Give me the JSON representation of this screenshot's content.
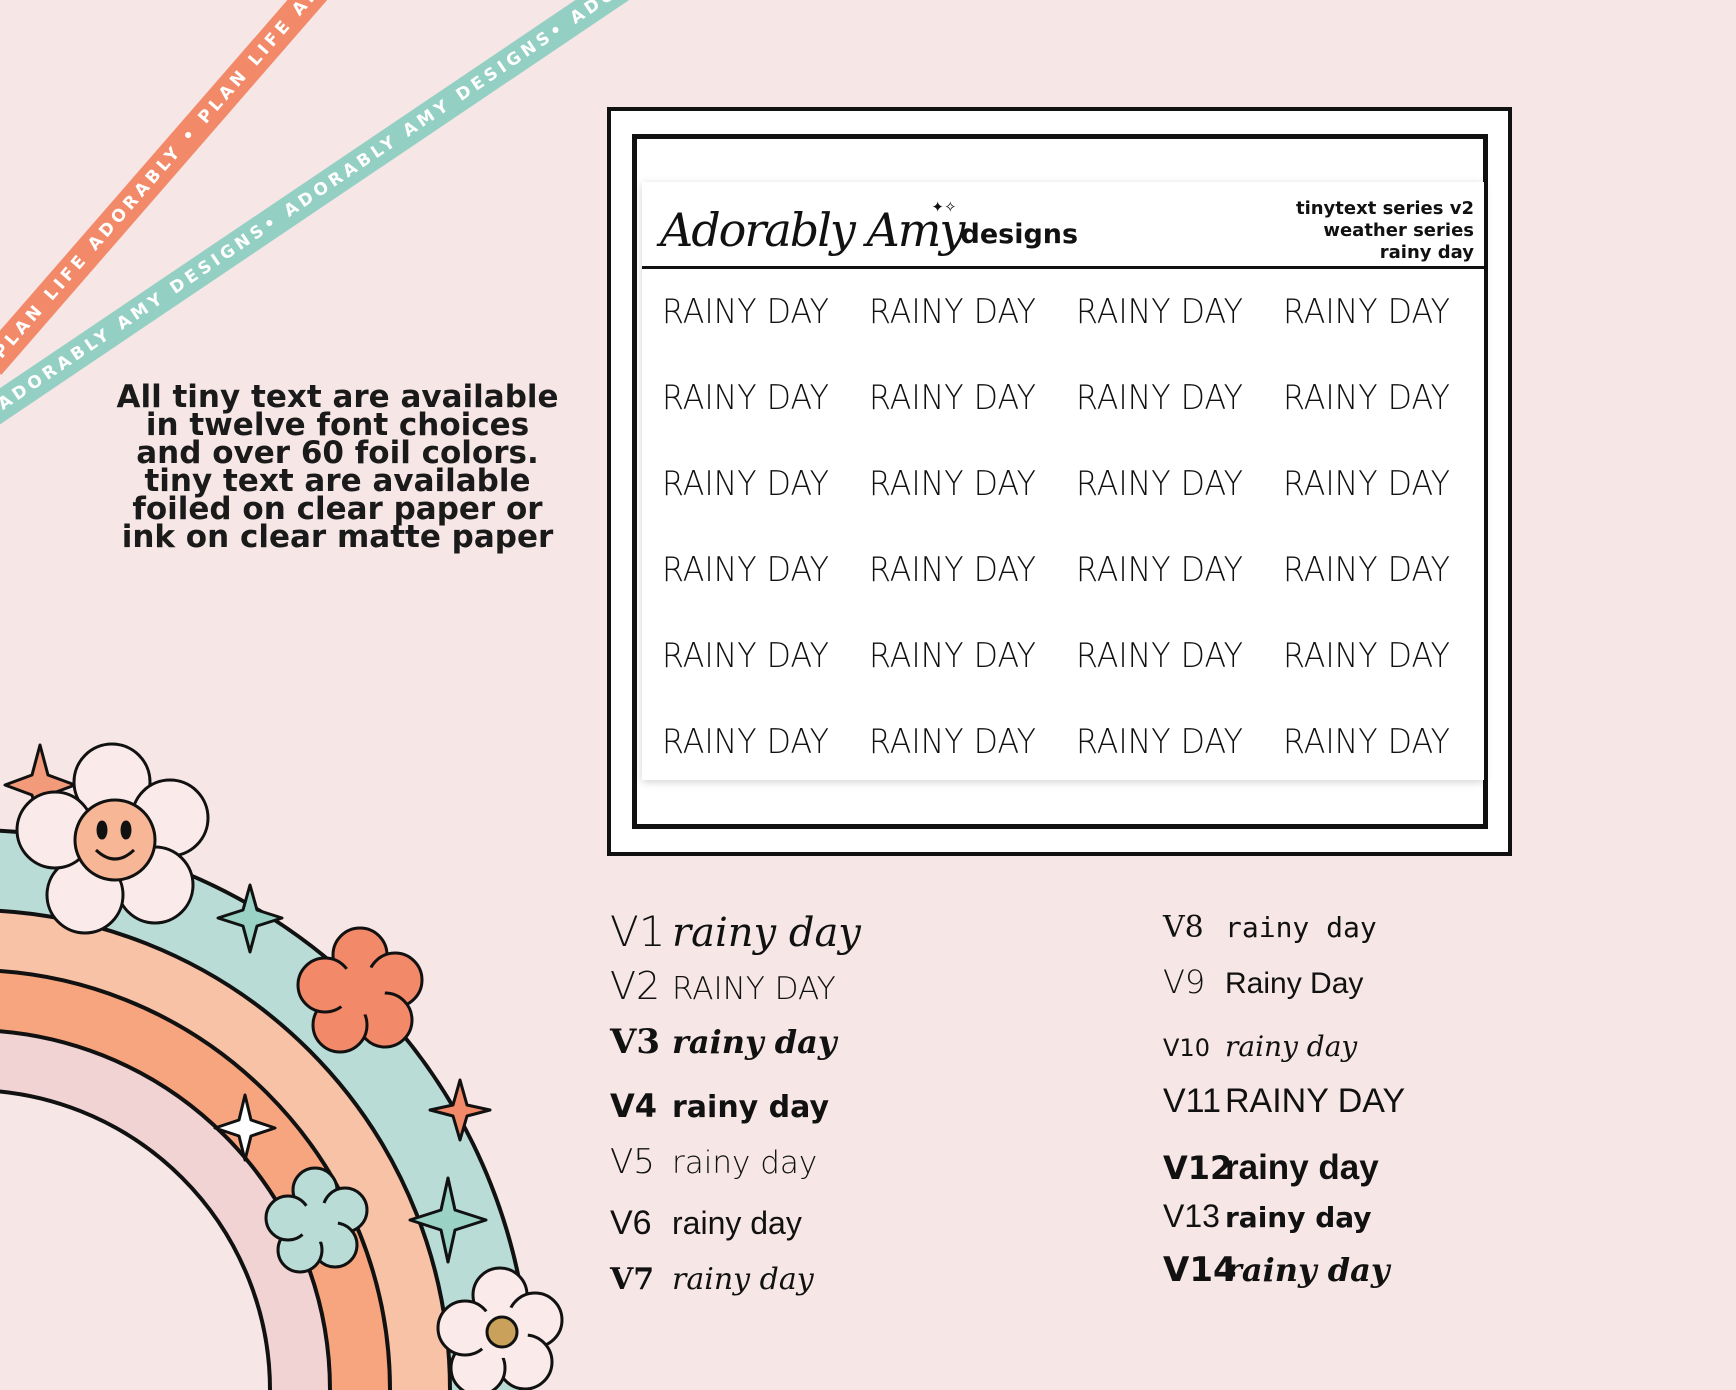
{
  "ribbons": {
    "orange": "PLAN LIFE ADORABLY • PLAN LIFE ADORABLY • PLAN LIFE ADORABLY •",
    "teal": "ADORABLY AMY DESIGNS• ADORABLY AMY DESIGNS• ADORABLY AMY DESIGNS• AD"
  },
  "info_text": "All tiny text are available in twelve font choices and over 60 foil colors.  tiny text are available foiled on clear paper or ink on clear matte paper",
  "sheet": {
    "brand_script": "Adorably Amy",
    "brand_word": "designs",
    "meta": [
      "tinytext series v2",
      "weather series",
      "rainy day"
    ],
    "sticker_text": "RAINY DAY",
    "rows": 6,
    "cols": 4
  },
  "font_choices": {
    "left": [
      {
        "version": "V1",
        "text": "rainy day"
      },
      {
        "version": "V2",
        "text": "RAINY DAY"
      },
      {
        "version": "V3",
        "text": "rainy day"
      },
      {
        "version": "V4",
        "text": "rainy day"
      },
      {
        "version": "V5",
        "text": "rainy day"
      },
      {
        "version": "V6",
        "text": "rainy day"
      },
      {
        "version": "V7",
        "text": "rainy day"
      }
    ],
    "right": [
      {
        "version": "V8",
        "text": "rainy day"
      },
      {
        "version": "V9",
        "text": "Rainy Day"
      },
      {
        "version": "V10",
        "text": "rainy day"
      },
      {
        "version": "V11",
        "text": "RAINY DAY"
      },
      {
        "version": "V12",
        "text": "rainy day"
      },
      {
        "version": "V13",
        "text": "rainy day"
      },
      {
        "version": "V14",
        "text": "rainy day"
      }
    ]
  },
  "colors": {
    "background": "#f6e6e6",
    "orange": "#f28a6a",
    "teal": "#94cfc3",
    "peach": "#f7b796",
    "pink": "#f2d4d4"
  }
}
